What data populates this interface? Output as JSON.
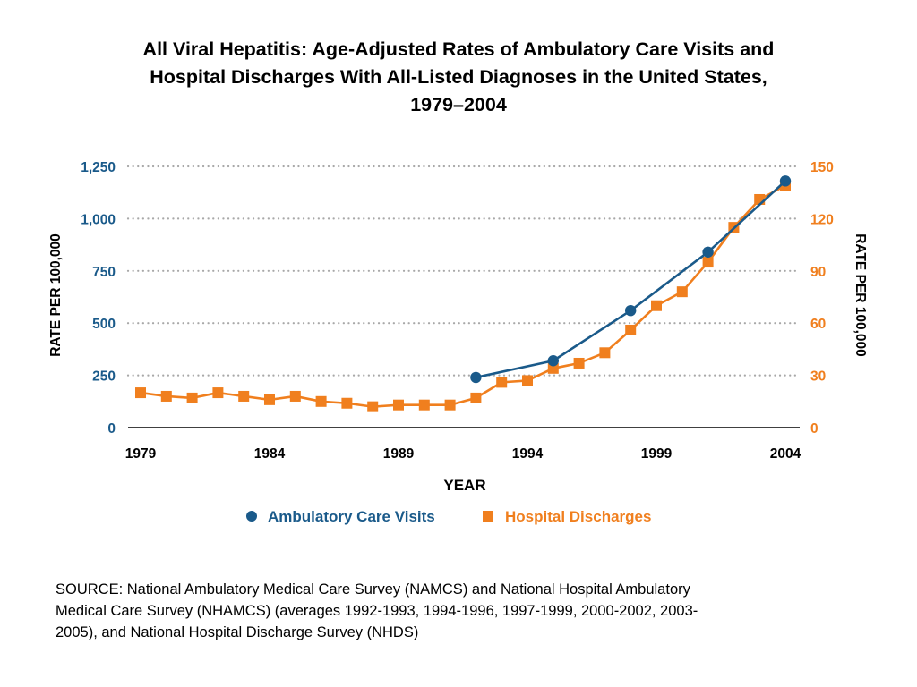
{
  "title_lines": [
    "All Viral Hepatitis:  Age-Adjusted Rates of Ambulatory Care Visits and",
    "Hospital Discharges With All-Listed Diagnoses in the United States,",
    "1979–2004"
  ],
  "source_lines": [
    "SOURCE: National Ambulatory Medical Care Survey (NAMCS) and National Hospital Ambulatory",
    "Medical Care Survey (NHAMCS) (averages 1992-1993, 1994-1996, 1997-1999, 2000-2002, 2003-",
    "2005), and National Hospital Discharge Survey (NHDS)"
  ],
  "chart_data": {
    "type": "line",
    "title": "All Viral Hepatitis:  Age-Adjusted Rates of Ambulatory Care Visits and Hospital Discharges With All-Listed Diagnoses in the United States, 1979–2004",
    "xlabel": "YEAR",
    "ylabel_left": "RATE PER 100,000",
    "ylabel_right": "RATE PER 100,000",
    "xlim": [
      1979,
      2004
    ],
    "xticks": [
      "1979",
      "1984",
      "1989",
      "1994",
      "1999",
      "2004"
    ],
    "ylim_left": [
      0,
      1250
    ],
    "yticks_left": [
      "0",
      "250",
      "500",
      "750",
      "1,000",
      "1,250"
    ],
    "ylim_right": [
      0,
      150
    ],
    "yticks_right": [
      "0",
      "30",
      "60",
      "90",
      "120",
      "150"
    ],
    "grid": "horizontal dotted",
    "legend_position": "bottom",
    "colors": {
      "blue": "#1a5a8a",
      "orange": "#f07f1e"
    },
    "series": [
      {
        "name": "Ambulatory Care Visits",
        "axis": "left",
        "marker": "circle",
        "color": "#1a5a8a",
        "x": [
          1992,
          1995,
          1998,
          2001,
          2004
        ],
        "y": [
          240,
          320,
          560,
          840,
          1180
        ]
      },
      {
        "name": "Hospital Discharges",
        "axis": "right",
        "marker": "square",
        "color": "#f07f1e",
        "x": [
          1979,
          1980,
          1981,
          1982,
          1983,
          1984,
          1985,
          1986,
          1987,
          1988,
          1989,
          1990,
          1991,
          1992,
          1993,
          1994,
          1995,
          1996,
          1997,
          1998,
          1999,
          2000,
          2001,
          2002,
          2003,
          2004
        ],
        "y": [
          20,
          18,
          17,
          20,
          18,
          16,
          18,
          15,
          14,
          12,
          13,
          13,
          13,
          17,
          26,
          27,
          34,
          37,
          43,
          56,
          70,
          78,
          95,
          115,
          131,
          139
        ]
      }
    ]
  }
}
